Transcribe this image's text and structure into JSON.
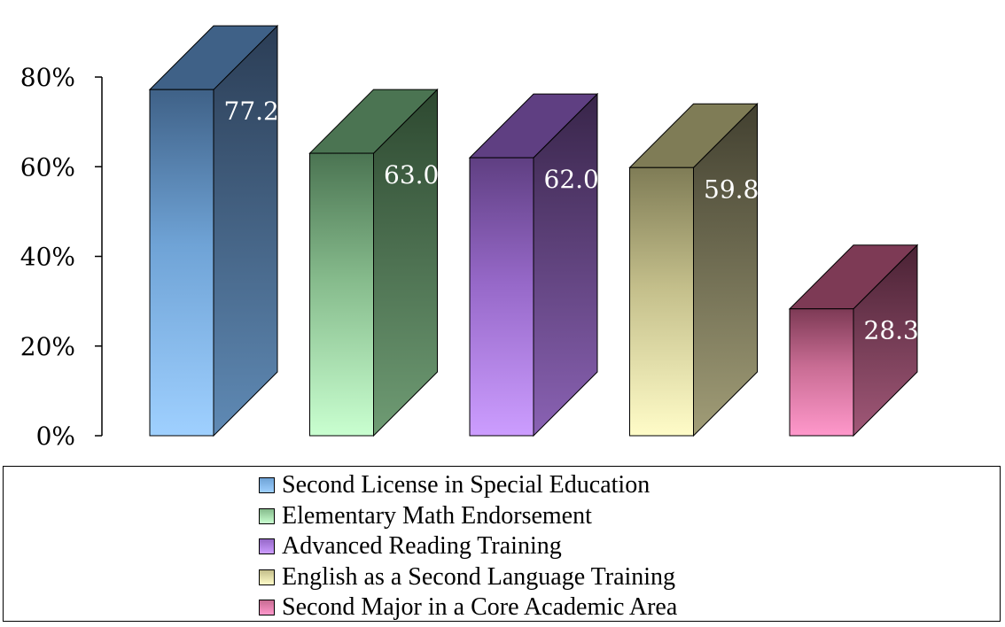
{
  "chart_data": {
    "type": "bar",
    "categories": [
      "Second License in Special Education",
      "Elementary Math Endorsement",
      "Advanced Reading Training",
      "English as a Second Language Training",
      "Second Major in a Core Academic Area"
    ],
    "values": [
      77.2,
      63.0,
      62.0,
      59.8,
      28.3
    ],
    "data_labels": [
      "77.2%",
      "63.0%",
      "62.0%",
      "59.8%",
      "28.3%"
    ],
    "title": "",
    "xlabel": "",
    "ylabel": "",
    "ylim": [
      0,
      80
    ],
    "yticks": [
      "0%",
      "20%",
      "40%",
      "60%",
      "80%"
    ],
    "grid": false,
    "legend_position": "bottom",
    "three_d": true,
    "colors": [
      {
        "light": "#9fd0ff",
        "mid": "#6fa3d6",
        "dark": "#3f6187",
        "side_light": "#5f8ab5",
        "side_dark": "#2b3d55"
      },
      {
        "light": "#c9ffd0",
        "mid": "#86bb8c",
        "dark": "#4b7452",
        "side_light": "#6f9c74",
        "side_dark": "#2d4830"
      },
      {
        "light": "#cc9dff",
        "mid": "#9668c8",
        "dark": "#5f3f82",
        "side_light": "#8a62b4",
        "side_dark": "#382549"
      },
      {
        "light": "#fffcc8",
        "mid": "#c4bf8b",
        "dark": "#7f7c56",
        "side_light": "#a19d77",
        "side_dark": "#424030"
      },
      {
        "light": "#ff98cb",
        "mid": "#c86c93",
        "dark": "#7d3a55",
        "side_light": "#a15878",
        "side_dark": "#4a2234"
      }
    ]
  }
}
